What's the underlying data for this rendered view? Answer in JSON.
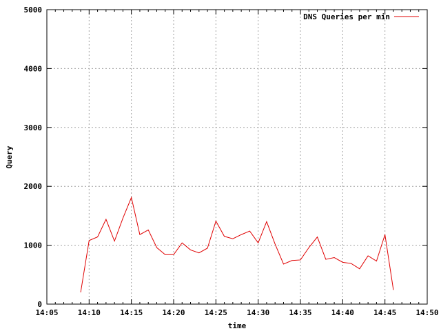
{
  "chart_data": {
    "type": "line",
    "xlabel": "time",
    "ylabel": "Query",
    "xlim": [
      "14:05",
      "14:50"
    ],
    "ylim": [
      0,
      5000
    ],
    "x_tick_labels": [
      "14:05",
      "14:10",
      "14:15",
      "14:20",
      "14:25",
      "14:30",
      "14:35",
      "14:40",
      "14:45",
      "14:50"
    ],
    "y_tick_labels": [
      "0",
      "1000",
      "2000",
      "3000",
      "4000",
      "5000"
    ],
    "grid": true,
    "legend": {
      "position": "top-right"
    },
    "series": [
      {
        "name": "DNS Queries per min",
        "color": "#e00000",
        "x": [
          "14:09",
          "14:10",
          "14:11",
          "14:12",
          "14:13",
          "14:14",
          "14:15",
          "14:16",
          "14:17",
          "14:18",
          "14:19",
          "14:20",
          "14:21",
          "14:22",
          "14:23",
          "14:24",
          "14:25",
          "14:26",
          "14:27",
          "14:28",
          "14:29",
          "14:30",
          "14:31",
          "14:32",
          "14:33",
          "14:34",
          "14:35",
          "14:36",
          "14:37",
          "14:38",
          "14:39",
          "14:40",
          "14:41",
          "14:42",
          "14:43",
          "14:44",
          "14:45",
          "14:46"
        ],
        "values": [
          200,
          1080,
          1140,
          1440,
          1070,
          1460,
          1810,
          1180,
          1260,
          960,
          840,
          840,
          1040,
          920,
          870,
          950,
          1410,
          1150,
          1110,
          1180,
          1240,
          1040,
          1400,
          1020,
          680,
          740,
          750,
          960,
          1140,
          760,
          790,
          710,
          690,
          600,
          820,
          730,
          1180,
          240
        ]
      }
    ]
  }
}
